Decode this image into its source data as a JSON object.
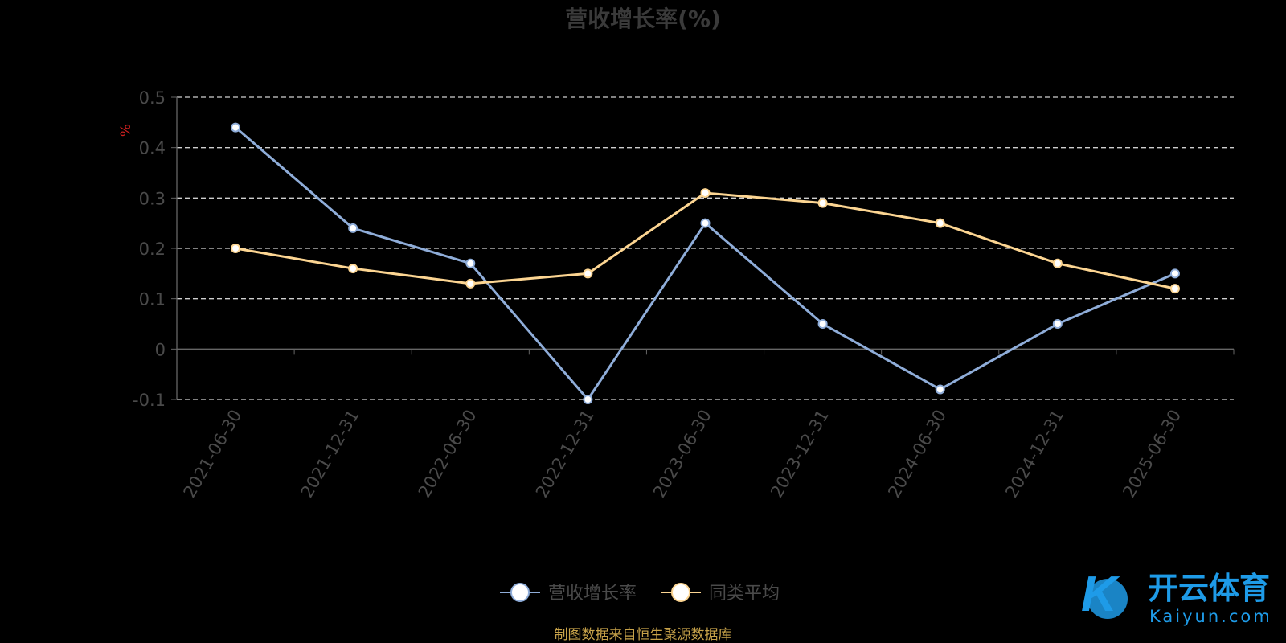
{
  "chart_data": {
    "type": "line",
    "title": "营收增长率(%)",
    "ylabel": "%",
    "xlabel": "",
    "categories": [
      "2021-06-30",
      "2021-12-31",
      "2022-06-30",
      "2022-12-31",
      "2023-06-30",
      "2023-12-31",
      "2024-06-30",
      "2024-12-31",
      "2025-06-30"
    ],
    "yticks": [
      "0.5",
      "0.4",
      "0.3",
      "0.2",
      "0.1",
      "0",
      "-0.1"
    ],
    "ylim": [
      -0.1,
      0.5
    ],
    "grid": true,
    "legend_position": "bottom",
    "series": [
      {
        "name": "营收增长率",
        "color": "#8fadd9",
        "values": [
          0.44,
          0.24,
          0.17,
          -0.1,
          0.25,
          0.05,
          -0.08,
          0.05,
          0.15
        ]
      },
      {
        "name": "同类平均",
        "color": "#fcd592",
        "values": [
          0.2,
          0.16,
          0.13,
          0.15,
          0.31,
          0.29,
          0.25,
          0.17,
          0.12
        ]
      }
    ]
  },
  "footer": {
    "source": "制图数据来自恒生聚源数据库"
  },
  "watermark": {
    "name_cn": "开云体育",
    "name_en": "Kaiyun.com"
  }
}
